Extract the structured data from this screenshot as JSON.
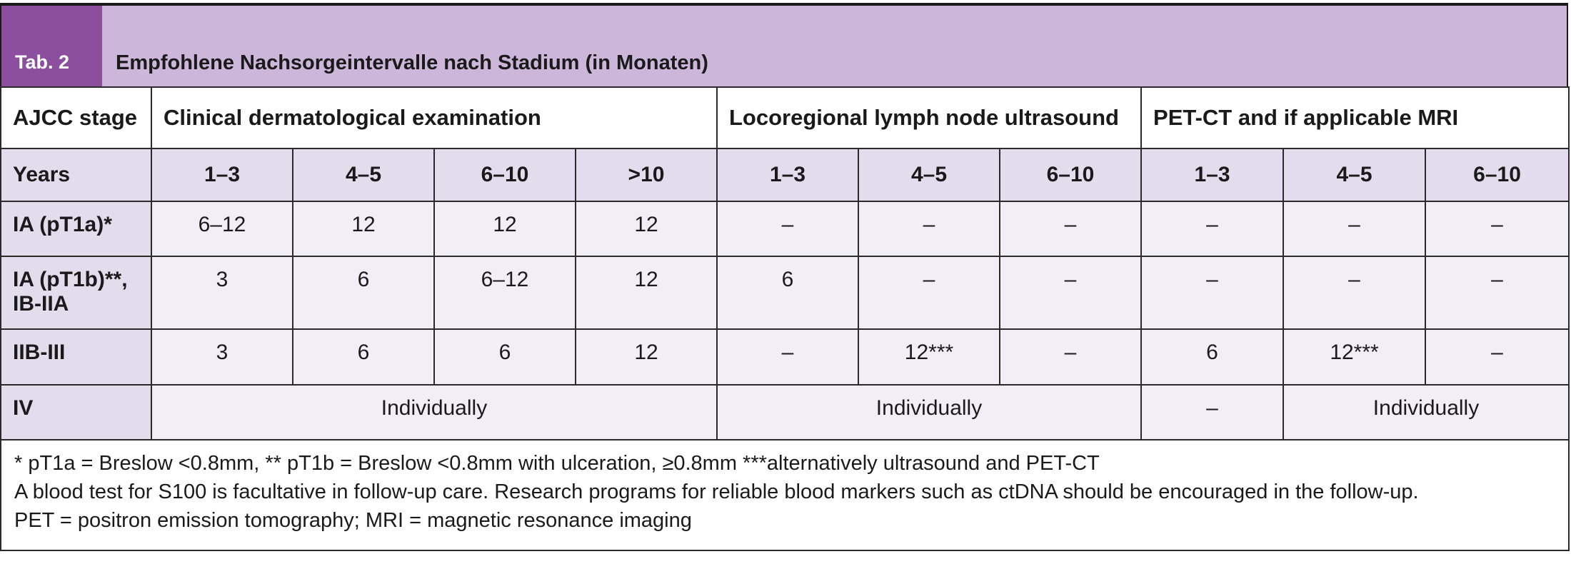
{
  "table": {
    "tab_label": "Tab. 2",
    "title": "Empfohlene Nachsorgeintervalle nach Stadium (in Monaten)",
    "header": {
      "stage_col": "AJCC stage",
      "group1": "Clinical dermatological examination",
      "group2": "Locoregional lymph node ultrasound",
      "group3": "PET-CT and if applicable MRI"
    },
    "years": {
      "label": "Years",
      "values": [
        "1–3",
        "4–5",
        "6–10",
        ">10",
        "1–3",
        "4–5",
        "6–10",
        "1–3",
        "4–5",
        "6–10"
      ]
    },
    "rows": [
      {
        "stage": "IA (pT1a)*",
        "cells": [
          "6–12",
          "12",
          "12",
          "12",
          "–",
          "–",
          "–",
          "–",
          "–",
          "–"
        ]
      },
      {
        "stage_line1": "IA (pT1b)**,",
        "stage_line2": "IB-IIA",
        "cells": [
          "3",
          "6",
          "6–12",
          "12",
          "6",
          "–",
          "–",
          "–",
          "–",
          "–"
        ]
      },
      {
        "stage": "IIB-III",
        "cells": [
          "3",
          "6",
          "6",
          "12",
          "–",
          "12***",
          "–",
          "6",
          "12***",
          "–"
        ]
      },
      {
        "stage": "IV",
        "clinical": "Individually",
        "ultrasound": "Individually",
        "pet_13": "–",
        "pet_rest": "Individually"
      }
    ],
    "footnotes": [
      "* pT1a = Breslow <0.8mm, ** pT1b = Breslow <0.8mm with ulceration, ≥0.8mm ***alternatively ultrasound and PET-CT",
      "A blood test for S100 is facultative in follow-up care. Research programs for reliable blood markers such as ctDNA should be encouraged in the follow-up.",
      "PET = positron emission tomography; MRI = magnetic resonance imaging"
    ]
  }
}
